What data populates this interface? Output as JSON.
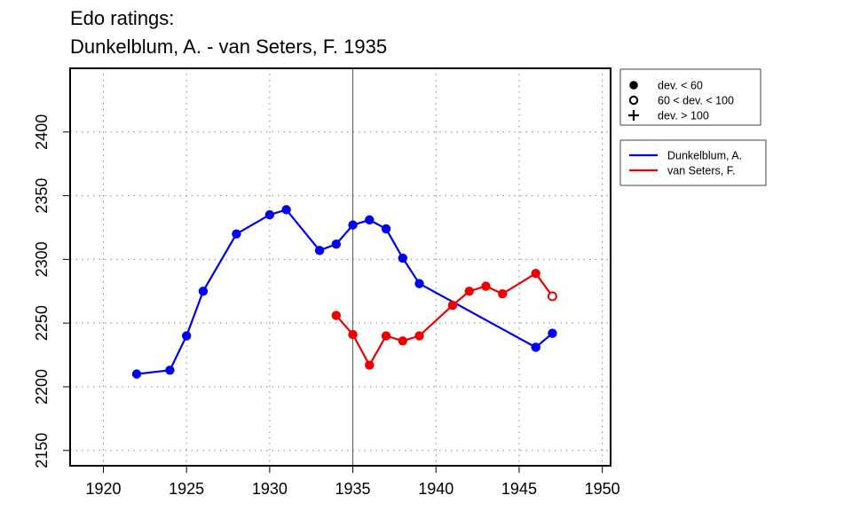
{
  "chart_data": {
    "type": "line",
    "title": "Edo ratings:",
    "subtitle": "Dunkelblum, A. - van Seters, F. 1935",
    "xlabel": "",
    "ylabel": "",
    "xlim": [
      1918,
      1950.5
    ],
    "ylim": [
      2138,
      2450
    ],
    "x_ticks": [
      "1920",
      "1925",
      "1930",
      "1935",
      "1940",
      "1945",
      "1950"
    ],
    "y_ticks": [
      "2150",
      "2200",
      "2250",
      "2300",
      "2350",
      "2400"
    ],
    "grid": "dotted",
    "reference_year": 1935,
    "marker_legend": {
      "placement": "top-right",
      "items": [
        {
          "symbol": "filled-circle",
          "label": "dev. < 60"
        },
        {
          "symbol": "open-circle",
          "label": "60 < dev. < 100"
        },
        {
          "symbol": "plus",
          "label": "dev. > 100"
        }
      ]
    },
    "series": [
      {
        "name": "Dunkelblum, A.",
        "color": "#0000ee",
        "points": [
          {
            "x": 1922,
            "y": 2210,
            "marker": "filled-circle"
          },
          {
            "x": 1924,
            "y": 2213,
            "marker": "filled-circle"
          },
          {
            "x": 1925,
            "y": 2240,
            "marker": "filled-circle"
          },
          {
            "x": 1926,
            "y": 2275,
            "marker": "filled-circle"
          },
          {
            "x": 1928,
            "y": 2320,
            "marker": "filled-circle"
          },
          {
            "x": 1930,
            "y": 2335,
            "marker": "filled-circle"
          },
          {
            "x": 1931,
            "y": 2339,
            "marker": "filled-circle"
          },
          {
            "x": 1933,
            "y": 2307,
            "marker": "filled-circle"
          },
          {
            "x": 1934,
            "y": 2312,
            "marker": "filled-circle"
          },
          {
            "x": 1935,
            "y": 2327,
            "marker": "filled-circle"
          },
          {
            "x": 1936,
            "y": 2331,
            "marker": "filled-circle"
          },
          {
            "x": 1937,
            "y": 2324,
            "marker": "filled-circle"
          },
          {
            "x": 1938,
            "y": 2301,
            "marker": "filled-circle"
          },
          {
            "x": 1939,
            "y": 2281,
            "marker": "filled-circle"
          },
          {
            "x": 1946,
            "y": 2231,
            "marker": "filled-circle"
          },
          {
            "x": 1947,
            "y": 2242,
            "marker": "filled-circle"
          }
        ]
      },
      {
        "name": "van Seters, F.",
        "color": "#ee0000",
        "points": [
          {
            "x": 1934,
            "y": 2256,
            "marker": "filled-circle"
          },
          {
            "x": 1935,
            "y": 2241,
            "marker": "filled-circle"
          },
          {
            "x": 1936,
            "y": 2217,
            "marker": "filled-circle"
          },
          {
            "x": 1937,
            "y": 2240,
            "marker": "filled-circle"
          },
          {
            "x": 1938,
            "y": 2236,
            "marker": "filled-circle"
          },
          {
            "x": 1939,
            "y": 2240,
            "marker": "filled-circle"
          },
          {
            "x": 1941,
            "y": 2264,
            "marker": "filled-circle"
          },
          {
            "x": 1942,
            "y": 2275,
            "marker": "filled-circle"
          },
          {
            "x": 1943,
            "y": 2279,
            "marker": "filled-circle"
          },
          {
            "x": 1944,
            "y": 2273,
            "marker": "filled-circle"
          },
          {
            "x": 1946,
            "y": 2289,
            "marker": "filled-circle"
          },
          {
            "x": 1947,
            "y": 2271,
            "marker": "open-circle"
          }
        ]
      }
    ]
  }
}
